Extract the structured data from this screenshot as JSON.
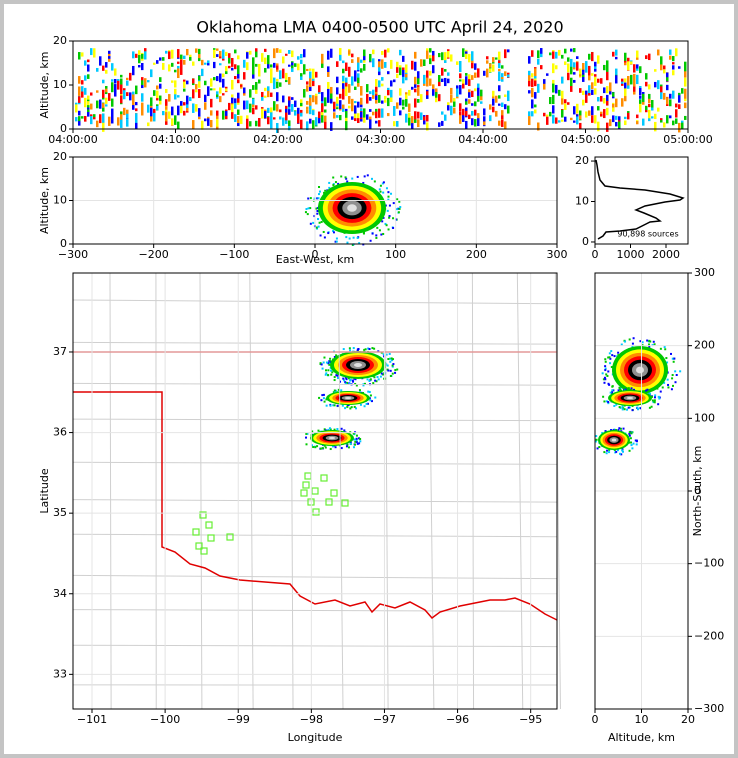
{
  "chart_data": [
    {
      "type": "density",
      "title": "Oklahoma LMA 0400-0500 UTC April 24, 2020",
      "ylabel": "Altitude, km",
      "xlim": [
        "04:00:00",
        "05:00:00"
      ],
      "xticks": [
        "04:00:00",
        "04:10:00",
        "04:20:00",
        "04:30:00",
        "04:40:00",
        "04:50:00",
        "05:00:00"
      ],
      "ylim": [
        0,
        20
      ],
      "yticks": [
        0,
        10,
        20
      ],
      "grid": false
    },
    {
      "type": "density",
      "xlabel": "East-West, km",
      "ylabel": "Altitude, km",
      "xlim": [
        -300,
        300
      ],
      "xticks": [
        {
          "value": -300,
          "label": "−300"
        },
        {
          "value": -200,
          "label": "−200"
        },
        {
          "value": -100,
          "label": "−100"
        },
        0,
        100,
        200,
        300
      ],
      "ylim": [
        0,
        20
      ],
      "yticks": [
        0,
        10,
        20
      ],
      "grid": true
    },
    {
      "type": "histogram",
      "annotation": "90,898 sources",
      "xlim": [
        0,
        2620
      ],
      "xticks": [
        0,
        1000,
        2000
      ],
      "ylim": [
        -0.5,
        21
      ],
      "yticks": [
        0,
        10,
        20
      ],
      "grid": false
    },
    {
      "type": "map",
      "xlabel": "Longitude",
      "ylabel": "Latitude",
      "xlim": [
        -101.26,
        -94.64
      ],
      "xticks": [
        {
          "value": -101,
          "label": "−101"
        },
        {
          "value": -100,
          "label": "−100"
        },
        {
          "value": -99,
          "label": "−99"
        },
        {
          "value": -98,
          "label": "−98"
        },
        {
          "value": -97,
          "label": "−97"
        },
        {
          "value": -96,
          "label": "−96"
        },
        {
          "value": -95,
          "label": "−95"
        }
      ],
      "ylim": [
        32.57,
        37.98
      ],
      "yticks": [
        33,
        34,
        35,
        36,
        37
      ],
      "grid": true
    },
    {
      "type": "density",
      "xlabel": "Altitude, km",
      "ylabel": "North-South, km",
      "yaxis_side": "right",
      "xlim": [
        0,
        20
      ],
      "xticks": [
        0,
        10,
        20
      ],
      "ylim": [
        -300,
        300
      ],
      "yticks": [
        {
          "value": -300,
          "label": "−300"
        },
        {
          "value": -200,
          "label": "−200"
        },
        {
          "value": -100,
          "label": "−100"
        },
        0,
        100,
        200,
        300
      ],
      "grid": true
    }
  ]
}
